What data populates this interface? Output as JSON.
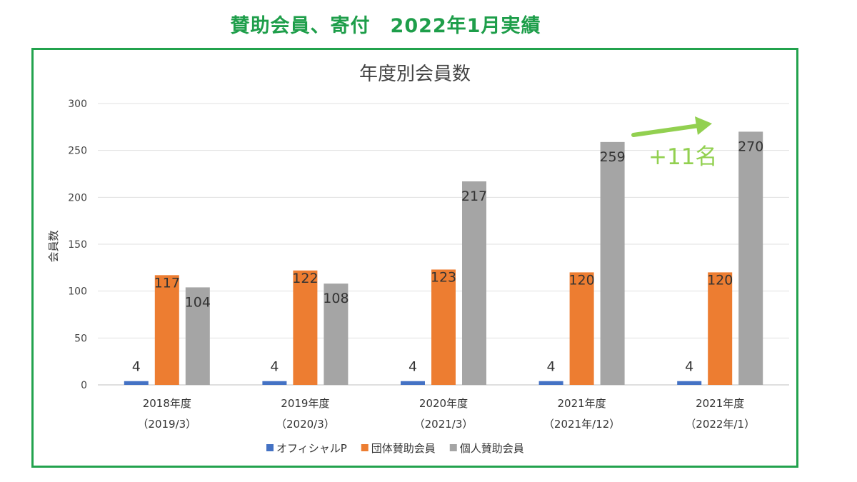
{
  "page": {
    "title": "賛助会員、寄付　2022年1月実績"
  },
  "colors": {
    "frame": "#22a24d",
    "title": "#1e9e4a",
    "annotation": "#92d050"
  },
  "annotation": {
    "text": "+11名"
  },
  "chart_data": {
    "type": "bar",
    "title": "年度別会員数",
    "ylabel": "会員数",
    "xlabel": "",
    "ylim": [
      0,
      300
    ],
    "yticks": [
      0,
      50,
      100,
      150,
      200,
      250,
      300
    ],
    "grid": true,
    "legend": "bottom",
    "categories": [
      {
        "line1": "2018年度",
        "line2": "（2019/3）"
      },
      {
        "line1": "2019年度",
        "line2": "（2020/3）"
      },
      {
        "line1": "2020年度",
        "line2": "（2021/3）"
      },
      {
        "line1": "2021年度",
        "line2": "（2021年/12）"
      },
      {
        "line1": "2021年度",
        "line2": "（2022年/1）"
      }
    ],
    "series": [
      {
        "name": "オフィシャルP",
        "color": "#4472c4",
        "values": [
          4,
          4,
          4,
          4,
          4
        ]
      },
      {
        "name": "団体賛助会員",
        "color": "#ed7d31",
        "values": [
          117,
          122,
          123,
          120,
          120
        ]
      },
      {
        "name": "個人賛助会員",
        "color": "#a5a5a5",
        "values": [
          104,
          108,
          217,
          259,
          270
        ]
      }
    ]
  }
}
